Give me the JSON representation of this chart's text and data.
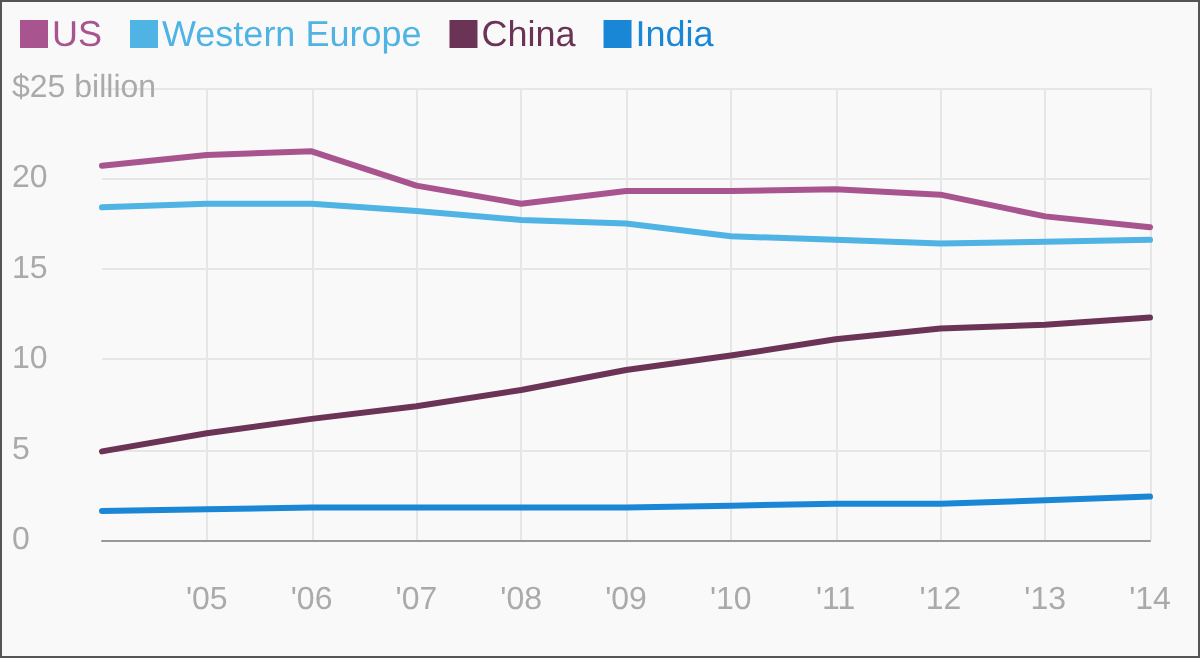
{
  "chart_data": {
    "type": "line",
    "x": [
      2004,
      2005,
      2006,
      2007,
      2008,
      2009,
      2010,
      2011,
      2012,
      2013,
      2014
    ],
    "series": [
      {
        "name": "US",
        "color": "#a8558f",
        "values": [
          20.7,
          21.3,
          21.5,
          19.6,
          18.6,
          19.3,
          19.3,
          19.4,
          19.1,
          17.9,
          17.3
        ]
      },
      {
        "name": "Western Europe",
        "color": "#4fb3e3",
        "values": [
          18.4,
          18.6,
          18.6,
          18.2,
          17.7,
          17.5,
          16.8,
          16.6,
          16.4,
          16.5,
          16.6
        ]
      },
      {
        "name": "China",
        "color": "#6b3356",
        "values": [
          4.9,
          5.9,
          6.7,
          7.4,
          8.3,
          9.4,
          10.2,
          11.1,
          11.7,
          11.9,
          12.3
        ]
      },
      {
        "name": "India",
        "color": "#1a86d6",
        "values": [
          1.6,
          1.7,
          1.8,
          1.8,
          1.8,
          1.8,
          1.9,
          2.0,
          2.0,
          2.2,
          2.4
        ]
      }
    ],
    "xlim": [
      2004,
      2014
    ],
    "xticks": [
      {
        "value": 2005,
        "label": "'05"
      },
      {
        "value": 2006,
        "label": "'06"
      },
      {
        "value": 2007,
        "label": "'07"
      },
      {
        "value": 2008,
        "label": "'08"
      },
      {
        "value": 2009,
        "label": "'09"
      },
      {
        "value": 2010,
        "label": "'10"
      },
      {
        "value": 2011,
        "label": "'11"
      },
      {
        "value": 2012,
        "label": "'12"
      },
      {
        "value": 2013,
        "label": "'13"
      },
      {
        "value": 2014,
        "label": "'14"
      }
    ],
    "ylim": [
      0,
      25
    ],
    "yticks": [
      0,
      5,
      10,
      15,
      20,
      {
        "value": 25,
        "label": "$25 billion"
      }
    ],
    "grid": true,
    "legend": "top left",
    "marker": "none",
    "line_style": "solid"
  }
}
